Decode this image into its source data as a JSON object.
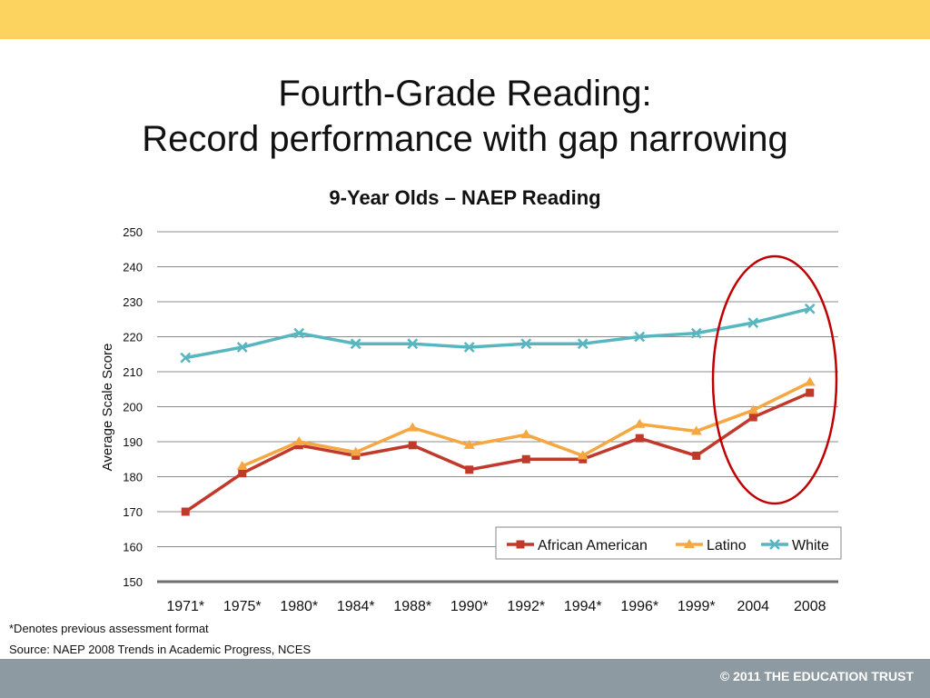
{
  "slide": {
    "title_line1": "Fourth-Grade Reading:",
    "title_line2": "Record performance with gap narrowing",
    "footnote": "*Denotes previous assessment format",
    "source": "Source: NAEP 2008 Trends in Academic Progress, NCES",
    "copyright": "© 2011 THE EDUCATION TRUST",
    "colors": {
      "top_bar": "#fdd35f",
      "bottom_bar": "#8d9aa1",
      "highlight_circle": "#c00000"
    }
  },
  "chart_data": {
    "type": "line",
    "title": "9-Year Olds – NAEP Reading",
    "xlabel": "",
    "ylabel": "Average Scale Score",
    "categories": [
      "1971*",
      "1975*",
      "1980*",
      "1984*",
      "1988*",
      "1990*",
      "1992*",
      "1994*",
      "1996*",
      "1999*",
      "2004",
      "2008"
    ],
    "ylim": [
      150,
      250
    ],
    "yticks": [
      150,
      160,
      170,
      180,
      190,
      200,
      210,
      220,
      230,
      240,
      250
    ],
    "grid": true,
    "legend_position": "bottom-right",
    "series": [
      {
        "name": "African American",
        "color": "#c0392b",
        "marker": "square",
        "values": [
          170,
          181,
          189,
          186,
          189,
          182,
          185,
          185,
          191,
          186,
          197,
          204
        ]
      },
      {
        "name": "Latino",
        "color": "#f5a742",
        "marker": "triangle",
        "values": [
          null,
          183,
          190,
          187,
          194,
          189,
          192,
          186,
          195,
          193,
          199,
          207
        ]
      },
      {
        "name": "White",
        "color": "#58b6c0",
        "marker": "x",
        "values": [
          214,
          217,
          221,
          218,
          218,
          217,
          218,
          218,
          220,
          221,
          224,
          228
        ]
      }
    ],
    "annotations": [
      {
        "type": "circle",
        "around_categories": [
          "2004",
          "2008"
        ]
      }
    ]
  }
}
